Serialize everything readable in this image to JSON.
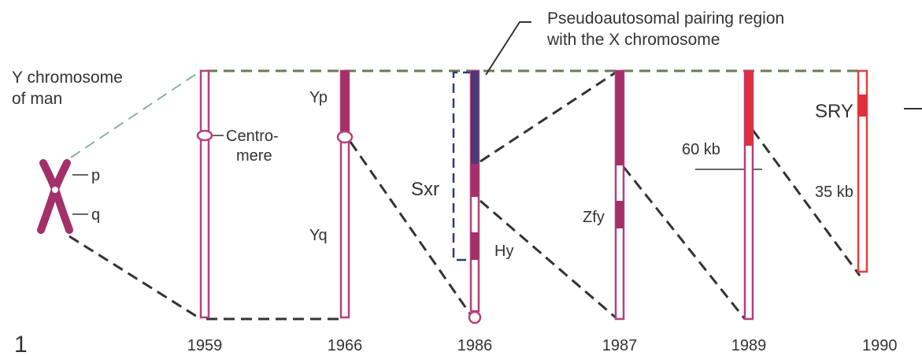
{
  "figure_number": "1",
  "annotation": {
    "lines": [
      "Pseudoautosomal pairing region",
      "with the X chromosome"
    ]
  },
  "source": {
    "lines": [
      "Y chromosome",
      "of man"
    ],
    "arms": [
      "p",
      "q"
    ]
  },
  "stages": [
    {
      "year": "1959",
      "labels": [
        "Centro-",
        "mere"
      ]
    },
    {
      "year": "1966",
      "labels": [
        "Yp",
        "Yq"
      ]
    },
    {
      "year": "1986",
      "labels": [
        "Sxr",
        "Hy"
      ]
    },
    {
      "year": "1987",
      "labels": [
        "Zfy"
      ]
    },
    {
      "year": "1989",
      "labels": [
        "60 kb"
      ]
    },
    {
      "year": "1990",
      "labels": [
        "SRY",
        "35 kb"
      ]
    }
  ]
}
